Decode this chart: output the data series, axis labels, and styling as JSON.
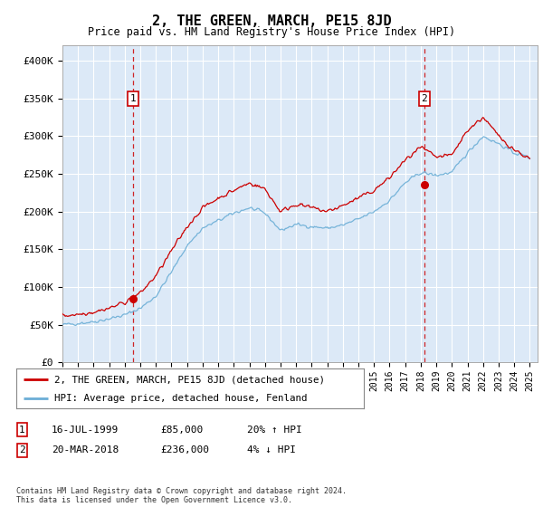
{
  "title": "2, THE GREEN, MARCH, PE15 8JD",
  "subtitle": "Price paid vs. HM Land Registry's House Price Index (HPI)",
  "ylabel_ticks": [
    "£0",
    "£50K",
    "£100K",
    "£150K",
    "£200K",
    "£250K",
    "£300K",
    "£350K",
    "£400K"
  ],
  "ylim": [
    0,
    420000
  ],
  "yticks": [
    0,
    50000,
    100000,
    150000,
    200000,
    250000,
    300000,
    350000,
    400000
  ],
  "xmin": 1995.0,
  "xmax": 2025.5,
  "sale1_year": 1999.54,
  "sale1_price": 85000,
  "sale1_label": "1",
  "sale1_date": "16-JUL-1999",
  "sale1_pct": "20% ↑ HPI",
  "sale2_year": 2018.22,
  "sale2_price": 236000,
  "sale2_label": "2",
  "sale2_date": "20-MAR-2018",
  "sale2_pct": "4% ↓ HPI",
  "legend_line1": "2, THE GREEN, MARCH, PE15 8JD (detached house)",
  "legend_line2": "HPI: Average price, detached house, Fenland",
  "footer": "Contains HM Land Registry data © Crown copyright and database right 2024.\nThis data is licensed under the Open Government Licence v3.0.",
  "hpi_color": "#6baed6",
  "price_color": "#cc0000",
  "bg_color": "#dce9f7",
  "grid_color": "#ffffff",
  "dashed_color": "#cc0000",
  "marker_box_color": "#cc0000",
  "hpi_segments": [
    [
      1995.0,
      50000
    ],
    [
      1996.0,
      52000
    ],
    [
      1997.0,
      54000
    ],
    [
      1998.0,
      58000
    ],
    [
      1999.0,
      63000
    ],
    [
      2000.0,
      72000
    ],
    [
      2001.0,
      88000
    ],
    [
      2002.0,
      120000
    ],
    [
      2003.0,
      155000
    ],
    [
      2004.0,
      178000
    ],
    [
      2005.0,
      188000
    ],
    [
      2006.0,
      198000
    ],
    [
      2007.0,
      205000
    ],
    [
      2008.0,
      198000
    ],
    [
      2009.0,
      175000
    ],
    [
      2010.0,
      183000
    ],
    [
      2011.0,
      180000
    ],
    [
      2012.0,
      178000
    ],
    [
      2013.0,
      182000
    ],
    [
      2014.0,
      190000
    ],
    [
      2015.0,
      200000
    ],
    [
      2016.0,
      215000
    ],
    [
      2017.0,
      238000
    ],
    [
      2018.0,
      252000
    ],
    [
      2019.0,
      248000
    ],
    [
      2020.0,
      252000
    ],
    [
      2021.0,
      278000
    ],
    [
      2022.0,
      300000
    ],
    [
      2023.0,
      290000
    ],
    [
      2024.0,
      278000
    ],
    [
      2025.0,
      272000
    ]
  ],
  "price_segments": [
    [
      1995.0,
      62000
    ],
    [
      1996.0,
      64000
    ],
    [
      1997.0,
      67000
    ],
    [
      1998.0,
      72000
    ],
    [
      1999.0,
      80000
    ],
    [
      2000.0,
      92000
    ],
    [
      2001.0,
      115000
    ],
    [
      2002.0,
      148000
    ],
    [
      2003.0,
      180000
    ],
    [
      2004.0,
      205000
    ],
    [
      2005.0,
      218000
    ],
    [
      2006.0,
      228000
    ],
    [
      2007.0,
      238000
    ],
    [
      2008.0,
      230000
    ],
    [
      2009.0,
      200000
    ],
    [
      2010.0,
      210000
    ],
    [
      2011.0,
      205000
    ],
    [
      2012.0,
      200000
    ],
    [
      2013.0,
      208000
    ],
    [
      2014.0,
      218000
    ],
    [
      2015.0,
      228000
    ],
    [
      2016.0,
      245000
    ],
    [
      2017.0,
      268000
    ],
    [
      2018.0,
      285000
    ],
    [
      2019.0,
      272000
    ],
    [
      2020.0,
      275000
    ],
    [
      2021.0,
      308000
    ],
    [
      2022.0,
      325000
    ],
    [
      2023.0,
      300000
    ],
    [
      2024.0,
      282000
    ],
    [
      2025.0,
      270000
    ]
  ]
}
